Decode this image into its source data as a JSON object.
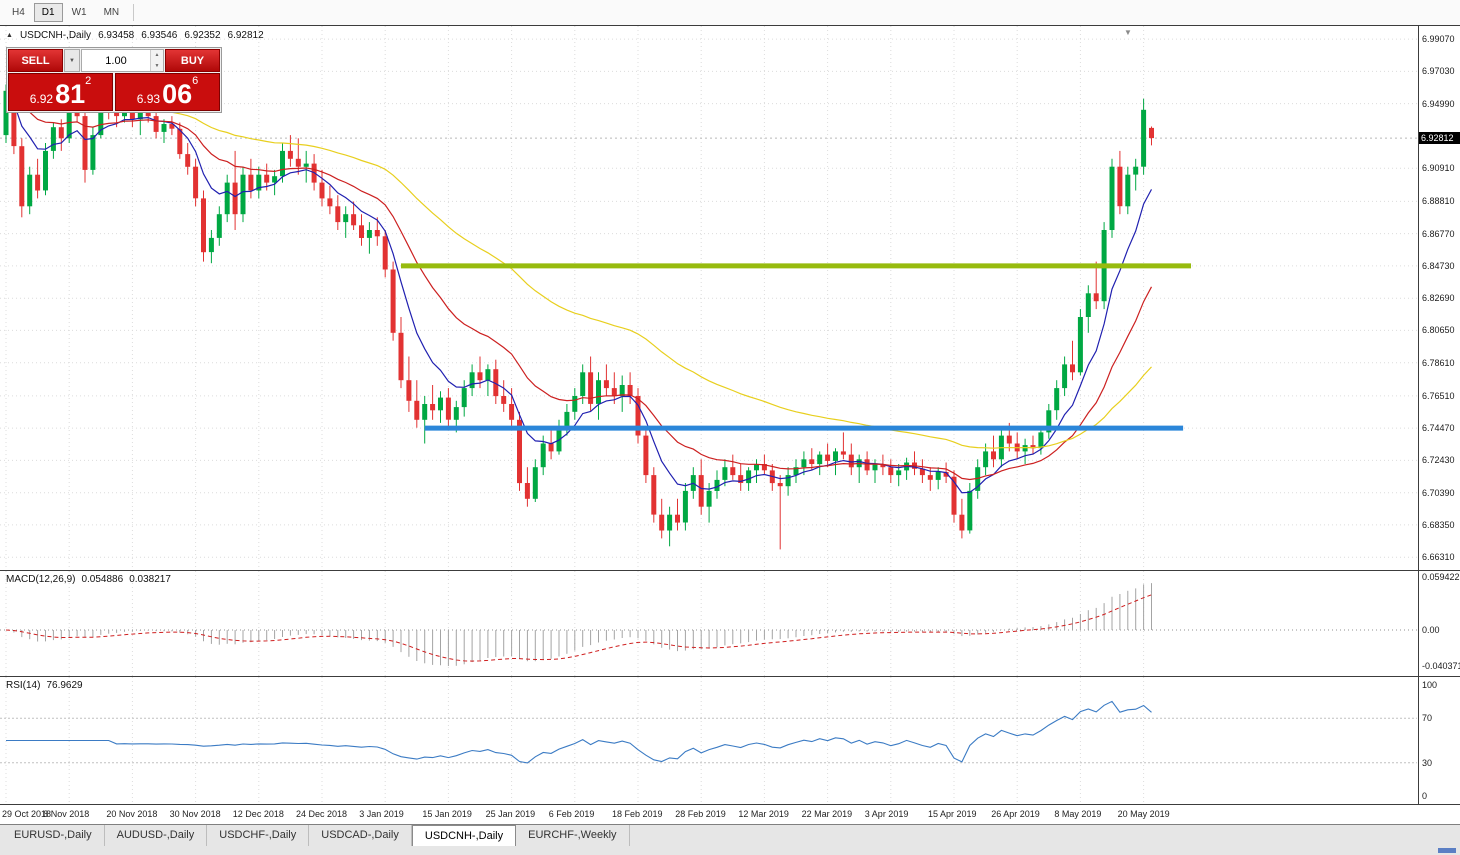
{
  "icons": {
    "symbol_arrow": "▲",
    "dropdown_arrow": "▼",
    "spin_up": "▲",
    "spin_down": "▼",
    "shift_marker": "▼"
  },
  "toolbar": {
    "timeframes": [
      {
        "label": "H4",
        "active": false
      },
      {
        "label": "D1",
        "active": true
      },
      {
        "label": "W1",
        "active": false
      },
      {
        "label": "MN",
        "active": false
      }
    ]
  },
  "chart_header": {
    "title": "USDCNH-,Daily",
    "open": "6.93458",
    "high": "6.93546",
    "low": "6.92352",
    "close": "6.92812"
  },
  "trade_panel": {
    "sell_label": "SELL",
    "buy_label": "BUY",
    "volume": "1.00",
    "sell_price": {
      "prefix": "6.92",
      "big": "81",
      "sup": "2"
    },
    "buy_price": {
      "prefix": "6.93",
      "big": "06",
      "sup": "6"
    }
  },
  "price_axis": {
    "current": "6.92812",
    "ticks": [
      {
        "label": "6.99070",
        "value": 6.9907
      },
      {
        "label": "6.97030",
        "value": 6.9703
      },
      {
        "label": "6.94990",
        "value": 6.9499
      },
      {
        "label": "6.90910",
        "value": 6.9091
      },
      {
        "label": "6.88810",
        "value": 6.8881
      },
      {
        "label": "6.86770",
        "value": 6.8677
      },
      {
        "label": "6.84730",
        "value": 6.8473
      },
      {
        "label": "6.82690",
        "value": 6.8269
      },
      {
        "label": "6.80650",
        "value": 6.8065
      },
      {
        "label": "6.78610",
        "value": 6.7861
      },
      {
        "label": "6.76510",
        "value": 6.7651
      },
      {
        "label": "6.74470",
        "value": 6.7447
      },
      {
        "label": "6.72430",
        "value": 6.7243
      },
      {
        "label": "6.70390",
        "value": 6.7039
      },
      {
        "label": "6.68350",
        "value": 6.6835
      },
      {
        "label": "6.66310",
        "value": 6.6631
      }
    ]
  },
  "macd_panel": {
    "label": "MACD(12,26,9)",
    "value_main": "0.054886",
    "value_signal": "0.038217",
    "scale_max": 0.059422,
    "scale_min": -0.040371,
    "scale_max_label": "0.059422",
    "scale_zero_label": "0.00",
    "scale_min_label": "-0.040371"
  },
  "rsi_panel": {
    "label": "RSI(14)",
    "value": "76.9629",
    "levels": [
      {
        "label": "100",
        "value": 100
      },
      {
        "label": "70",
        "value": 70
      },
      {
        "label": "30",
        "value": 30
      },
      {
        "label": "0",
        "value": 0
      }
    ]
  },
  "tabs": [
    {
      "label": "EURUSD-,Daily",
      "active": false
    },
    {
      "label": "AUDUSD-,Daily",
      "active": false
    },
    {
      "label": "USDCHF-,Daily",
      "active": false
    },
    {
      "label": "USDCAD-,Daily",
      "active": false
    },
    {
      "label": "USDCNH-,Daily",
      "active": true
    },
    {
      "label": "EURCHF-,Weekly",
      "active": false
    }
  ],
  "chart_data": {
    "type": "candlestick",
    "symbol": "USDCNH-",
    "timeframe": "Daily",
    "y_range": [
      6.655,
      6.999
    ],
    "label_every": 8,
    "x_tick_labels": [
      "29 Oct 2018",
      "8 Nov 2018",
      "20 Nov 2018",
      "30 Nov 2018",
      "12 Dec 2018",
      "24 Dec 2018",
      "3 Jan 2019",
      "15 Jan 2019",
      "25 Jan 2019",
      "6 Feb 2019",
      "18 Feb 2019",
      "28 Feb 2019",
      "12 Mar 2019",
      "22 Mar 2019",
      "3 Apr 2019",
      "15 Apr 2019",
      "26 Apr 2019",
      "8 May 2019",
      "20 May 2019"
    ],
    "indicators": {
      "macd_fast": 12,
      "macd_slow": 26,
      "macd_signal": 9,
      "rsi_period": 14
    },
    "moving_averages": [
      {
        "name": "fast",
        "period": 8,
        "color": "#2020b0"
      },
      {
        "name": "medium",
        "period": 21,
        "color": "#cc2020"
      },
      {
        "name": "slow",
        "period": 55,
        "color": "#e8cf1e"
      }
    ],
    "hlines": [
      {
        "name": "resistance-line",
        "value": 6.8473,
        "from_index": 50,
        "to_index": 150,
        "color": "#97bb0e",
        "width": 5
      },
      {
        "name": "support-line",
        "value": 6.7447,
        "from_index": 53,
        "to_index": 149,
        "color": "#2b86d9",
        "width": 5
      }
    ],
    "colors": {
      "up": "#00a843",
      "down": "#e23232",
      "grid": "#dcdcdc",
      "bid_line": "#b8b8b8",
      "macd_bar": "#a4a4a4",
      "macd_signal": "#cf1f1f",
      "rsi_line": "#3b7bc4",
      "rsi_level": "#c0c0c0"
    },
    "ohlc": [
      [
        6.93,
        6.962,
        6.925,
        6.958
      ],
      [
        6.958,
        6.964,
        6.918,
        6.923
      ],
      [
        6.923,
        6.928,
        6.878,
        6.885
      ],
      [
        6.885,
        6.91,
        6.88,
        6.905
      ],
      [
        6.905,
        6.915,
        6.89,
        6.895
      ],
      [
        6.895,
        6.925,
        6.892,
        6.92
      ],
      [
        6.92,
        6.938,
        6.915,
        6.935
      ],
      [
        6.935,
        6.94,
        6.92,
        6.928
      ],
      [
        6.928,
        6.952,
        6.925,
        6.948
      ],
      [
        6.948,
        6.956,
        6.938,
        6.942
      ],
      [
        6.942,
        6.945,
        6.9,
        6.908
      ],
      [
        6.908,
        6.935,
        6.905,
        6.93
      ],
      [
        6.93,
        6.956,
        6.928,
        6.952
      ],
      [
        6.952,
        6.958,
        6.94,
        6.945
      ],
      [
        6.945,
        6.95,
        6.935,
        6.942
      ],
      [
        6.942,
        6.953,
        6.938,
        6.949
      ],
      [
        6.949,
        6.954,
        6.935,
        6.94
      ],
      [
        6.94,
        6.948,
        6.93,
        6.944
      ],
      [
        6.944,
        6.95,
        6.938,
        6.942
      ],
      [
        6.942,
        6.946,
        6.928,
        6.932
      ],
      [
        6.932,
        6.94,
        6.925,
        6.937
      ],
      [
        6.937,
        6.942,
        6.93,
        6.934
      ],
      [
        6.934,
        6.938,
        6.915,
        6.918
      ],
      [
        6.918,
        6.925,
        6.905,
        6.91
      ],
      [
        6.91,
        6.915,
        6.885,
        6.89
      ],
      [
        6.89,
        6.895,
        6.85,
        6.856
      ],
      [
        6.856,
        6.87,
        6.849,
        6.865
      ],
      [
        6.865,
        6.885,
        6.86,
        6.88
      ],
      [
        6.88,
        6.905,
        6.875,
        6.9
      ],
      [
        6.9,
        6.92,
        6.87,
        6.88
      ],
      [
        6.88,
        6.91,
        6.875,
        6.905
      ],
      [
        6.905,
        6.915,
        6.89,
        6.895
      ],
      [
        6.895,
        6.91,
        6.89,
        6.905
      ],
      [
        6.905,
        6.912,
        6.895,
        6.9
      ],
      [
        6.9,
        6.908,
        6.892,
        6.904
      ],
      [
        6.904,
        6.925,
        6.9,
        6.92
      ],
      [
        6.92,
        6.93,
        6.91,
        6.915
      ],
      [
        6.915,
        6.928,
        6.905,
        6.91
      ],
      [
        6.91,
        6.92,
        6.9,
        6.912
      ],
      [
        6.912,
        6.918,
        6.895,
        6.9
      ],
      [
        6.9,
        6.908,
        6.885,
        6.89
      ],
      [
        6.89,
        6.898,
        6.88,
        6.885
      ],
      [
        6.885,
        6.892,
        6.87,
        6.875
      ],
      [
        6.875,
        6.885,
        6.865,
        6.88
      ],
      [
        6.88,
        6.888,
        6.87,
        6.873
      ],
      [
        6.873,
        6.88,
        6.86,
        6.865
      ],
      [
        6.865,
        6.875,
        6.855,
        6.87
      ],
      [
        6.87,
        6.878,
        6.86,
        6.866
      ],
      [
        6.866,
        6.87,
        6.84,
        6.845
      ],
      [
        6.845,
        6.85,
        6.8,
        6.805
      ],
      [
        6.805,
        6.815,
        6.77,
        6.775
      ],
      [
        6.775,
        6.79,
        6.755,
        6.762
      ],
      [
        6.762,
        6.775,
        6.745,
        6.75
      ],
      [
        6.75,
        6.765,
        6.735,
        6.76
      ],
      [
        6.76,
        6.772,
        6.75,
        6.756
      ],
      [
        6.756,
        6.768,
        6.748,
        6.764
      ],
      [
        6.764,
        6.77,
        6.745,
        6.75
      ],
      [
        6.75,
        6.762,
        6.742,
        6.758
      ],
      [
        6.758,
        6.775,
        6.752,
        6.77
      ],
      [
        6.77,
        6.785,
        6.765,
        6.78
      ],
      [
        6.78,
        6.79,
        6.77,
        6.775
      ],
      [
        6.775,
        6.785,
        6.765,
        6.782
      ],
      [
        6.782,
        6.788,
        6.76,
        6.765
      ],
      [
        6.765,
        6.775,
        6.755,
        6.76
      ],
      [
        6.76,
        6.77,
        6.745,
        6.75
      ],
      [
        6.75,
        6.755,
        6.705,
        6.71
      ],
      [
        6.71,
        6.72,
        6.695,
        6.7
      ],
      [
        6.7,
        6.725,
        6.698,
        6.72
      ],
      [
        6.72,
        6.74,
        6.715,
        6.735
      ],
      [
        6.735,
        6.745,
        6.725,
        6.73
      ],
      [
        6.73,
        6.75,
        6.728,
        6.745
      ],
      [
        6.745,
        6.76,
        6.74,
        6.755
      ],
      [
        6.755,
        6.77,
        6.75,
        6.765
      ],
      [
        6.765,
        6.785,
        6.76,
        6.78
      ],
      [
        6.78,
        6.79,
        6.755,
        6.76
      ],
      [
        6.76,
        6.78,
        6.75,
        6.775
      ],
      [
        6.775,
        6.785,
        6.765,
        6.77
      ],
      [
        6.77,
        6.78,
        6.76,
        6.765
      ],
      [
        6.765,
        6.778,
        6.755,
        6.772
      ],
      [
        6.772,
        6.78,
        6.76,
        6.765
      ],
      [
        6.765,
        6.77,
        6.735,
        6.74
      ],
      [
        6.74,
        6.745,
        6.71,
        6.715
      ],
      [
        6.715,
        6.72,
        6.685,
        6.69
      ],
      [
        6.69,
        6.7,
        6.675,
        6.68
      ],
      [
        6.68,
        6.695,
        6.67,
        6.69
      ],
      [
        6.69,
        6.7,
        6.68,
        6.685
      ],
      [
        6.685,
        6.71,
        6.68,
        6.705
      ],
      [
        6.705,
        6.72,
        6.7,
        6.715
      ],
      [
        6.715,
        6.725,
        6.69,
        6.695
      ],
      [
        6.695,
        6.71,
        6.685,
        6.705
      ],
      [
        6.705,
        6.718,
        6.7,
        6.712
      ],
      [
        6.712,
        6.725,
        6.708,
        6.72
      ],
      [
        6.72,
        6.728,
        6.712,
        6.715
      ],
      [
        6.715,
        6.722,
        6.705,
        6.71
      ],
      [
        6.71,
        6.72,
        6.705,
        6.718
      ],
      [
        6.718,
        6.725,
        6.71,
        6.722
      ],
      [
        6.722,
        6.728,
        6.715,
        6.718
      ],
      [
        6.718,
        6.722,
        6.705,
        6.71
      ],
      [
        6.71,
        6.715,
        6.668,
        6.708
      ],
      [
        6.708,
        6.72,
        6.702,
        6.715
      ],
      [
        6.715,
        6.725,
        6.71,
        6.72
      ],
      [
        6.72,
        6.73,
        6.715,
        6.725
      ],
      [
        6.725,
        6.732,
        6.718,
        6.722
      ],
      [
        6.722,
        6.73,
        6.715,
        6.728
      ],
      [
        6.728,
        6.735,
        6.72,
        6.724
      ],
      [
        6.724,
        6.732,
        6.715,
        6.73
      ],
      [
        6.73,
        6.742,
        6.725,
        6.728
      ],
      [
        6.728,
        6.735,
        6.715,
        6.72
      ],
      [
        6.72,
        6.728,
        6.71,
        6.725
      ],
      [
        6.725,
        6.73,
        6.715,
        6.718
      ],
      [
        6.718,
        6.725,
        6.71,
        6.722
      ],
      [
        6.722,
        6.728,
        6.715,
        6.72
      ],
      [
        6.72,
        6.725,
        6.71,
        6.715
      ],
      [
        6.715,
        6.722,
        6.708,
        6.718
      ],
      [
        6.718,
        6.726,
        6.712,
        6.723
      ],
      [
        6.723,
        6.73,
        6.715,
        6.719
      ],
      [
        6.719,
        6.725,
        6.71,
        6.715
      ],
      [
        6.715,
        6.72,
        6.705,
        6.712
      ],
      [
        6.712,
        6.72,
        6.706,
        6.717
      ],
      [
        6.717,
        6.723,
        6.71,
        6.714
      ],
      [
        6.714,
        6.718,
        6.685,
        6.69
      ],
      [
        6.69,
        6.7,
        6.675,
        6.68
      ],
      [
        6.68,
        6.71,
        6.678,
        6.705
      ],
      [
        6.705,
        6.725,
        6.7,
        6.72
      ],
      [
        6.72,
        6.735,
        6.715,
        6.73
      ],
      [
        6.73,
        6.74,
        6.72,
        6.725
      ],
      [
        6.725,
        6.745,
        6.72,
        6.74
      ],
      [
        6.74,
        6.748,
        6.73,
        6.735
      ],
      [
        6.735,
        6.742,
        6.725,
        6.73
      ],
      [
        6.73,
        6.738,
        6.722,
        6.734
      ],
      [
        6.734,
        6.74,
        6.728,
        6.732
      ],
      [
        6.732,
        6.745,
        6.728,
        6.742
      ],
      [
        6.742,
        6.76,
        6.738,
        6.756
      ],
      [
        6.756,
        6.775,
        6.75,
        6.77
      ],
      [
        6.77,
        6.79,
        6.765,
        6.785
      ],
      [
        6.785,
        6.8,
        6.775,
        6.78
      ],
      [
        6.78,
        6.82,
        6.778,
        6.815
      ],
      [
        6.815,
        6.835,
        6.805,
        6.83
      ],
      [
        6.83,
        6.85,
        6.82,
        6.825
      ],
      [
        6.825,
        6.875,
        6.82,
        6.87
      ],
      [
        6.87,
        6.915,
        6.865,
        6.91
      ],
      [
        6.91,
        6.92,
        6.88,
        6.885
      ],
      [
        6.885,
        6.91,
        6.88,
        6.905
      ],
      [
        6.905,
        6.915,
        6.895,
        6.91
      ],
      [
        6.91,
        6.953,
        6.905,
        6.946
      ],
      [
        6.93458,
        6.93546,
        6.92352,
        6.92812
      ]
    ]
  }
}
